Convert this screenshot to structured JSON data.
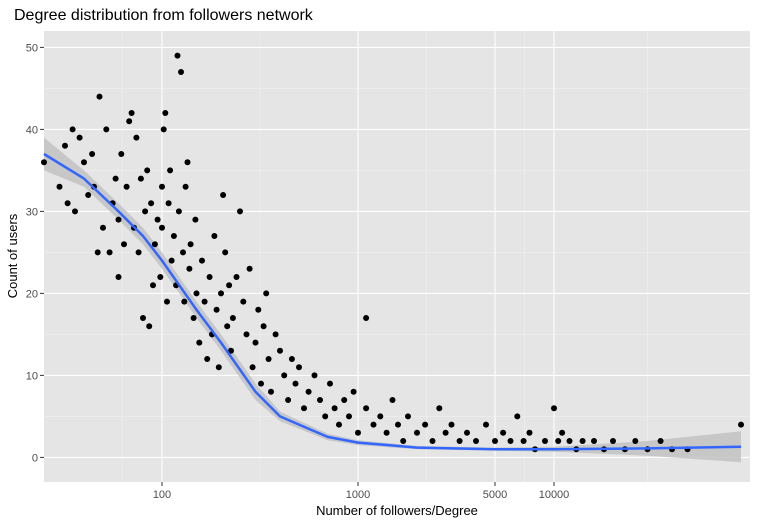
{
  "chart_data": {
    "type": "scatter",
    "title": "Degree distribution from followers network",
    "xlabel": "Number of followers/Degree",
    "ylabel": "Count of users",
    "x_scale": "log10",
    "xlim": [
      25,
      100000
    ],
    "ylim": [
      -3,
      52
    ],
    "x_ticks": [
      {
        "value": 100,
        "label": "100"
      },
      {
        "value": 1000,
        "label": "1000"
      },
      {
        "value": 5000,
        "label": "5000"
      },
      {
        "value": 10000,
        "label": "10000"
      }
    ],
    "y_ticks": [
      {
        "value": 0,
        "label": "0"
      },
      {
        "value": 10,
        "label": "10"
      },
      {
        "value": 20,
        "label": "20"
      },
      {
        "value": 30,
        "label": "30"
      },
      {
        "value": 40,
        "label": "40"
      },
      {
        "value": 50,
        "label": "50"
      }
    ],
    "grid": true,
    "points": [
      [
        25,
        36
      ],
      [
        30,
        33
      ],
      [
        32,
        38
      ],
      [
        33,
        31
      ],
      [
        35,
        40
      ],
      [
        36,
        30
      ],
      [
        38,
        39
      ],
      [
        40,
        36
      ],
      [
        42,
        32
      ],
      [
        44,
        37
      ],
      [
        45,
        33
      ],
      [
        47,
        25
      ],
      [
        48,
        44
      ],
      [
        50,
        28
      ],
      [
        52,
        40
      ],
      [
        54,
        25
      ],
      [
        56,
        31
      ],
      [
        58,
        34
      ],
      [
        60,
        22
      ],
      [
        60,
        29
      ],
      [
        62,
        37
      ],
      [
        64,
        26
      ],
      [
        66,
        33
      ],
      [
        68,
        41
      ],
      [
        70,
        42
      ],
      [
        72,
        28
      ],
      [
        74,
        39
      ],
      [
        76,
        25
      ],
      [
        78,
        34
      ],
      [
        80,
        17
      ],
      [
        82,
        30
      ],
      [
        84,
        35
      ],
      [
        86,
        16
      ],
      [
        88,
        31
      ],
      [
        90,
        21
      ],
      [
        92,
        26
      ],
      [
        95,
        29
      ],
      [
        98,
        22
      ],
      [
        100,
        28
      ],
      [
        100,
        33
      ],
      [
        102,
        40
      ],
      [
        104,
        42
      ],
      [
        106,
        19
      ],
      [
        108,
        31
      ],
      [
        110,
        35
      ],
      [
        112,
        24
      ],
      [
        115,
        27
      ],
      [
        118,
        21
      ],
      [
        120,
        49
      ],
      [
        122,
        30
      ],
      [
        125,
        47
      ],
      [
        128,
        25
      ],
      [
        130,
        19
      ],
      [
        132,
        33
      ],
      [
        135,
        36
      ],
      [
        138,
        23
      ],
      [
        140,
        26
      ],
      [
        145,
        17
      ],
      [
        148,
        29
      ],
      [
        150,
        20
      ],
      [
        155,
        14
      ],
      [
        160,
        24
      ],
      [
        165,
        19
      ],
      [
        170,
        12
      ],
      [
        175,
        22
      ],
      [
        180,
        15
      ],
      [
        185,
        27
      ],
      [
        190,
        18
      ],
      [
        195,
        11
      ],
      [
        200,
        20
      ],
      [
        205,
        32
      ],
      [
        210,
        25
      ],
      [
        215,
        16
      ],
      [
        220,
        21
      ],
      [
        225,
        13
      ],
      [
        230,
        17
      ],
      [
        240,
        22
      ],
      [
        250,
        30
      ],
      [
        260,
        19
      ],
      [
        270,
        15
      ],
      [
        280,
        23
      ],
      [
        290,
        11
      ],
      [
        300,
        14
      ],
      [
        310,
        18
      ],
      [
        320,
        9
      ],
      [
        330,
        16
      ],
      [
        340,
        20
      ],
      [
        350,
        12
      ],
      [
        360,
        8
      ],
      [
        380,
        15
      ],
      [
        400,
        13
      ],
      [
        420,
        10
      ],
      [
        440,
        7
      ],
      [
        460,
        12
      ],
      [
        480,
        9
      ],
      [
        500,
        11
      ],
      [
        530,
        6
      ],
      [
        560,
        8
      ],
      [
        600,
        10
      ],
      [
        640,
        7
      ],
      [
        680,
        5
      ],
      [
        720,
        9
      ],
      [
        760,
        6
      ],
      [
        800,
        4
      ],
      [
        850,
        7
      ],
      [
        900,
        5
      ],
      [
        950,
        8
      ],
      [
        1000,
        3
      ],
      [
        1100,
        17
      ],
      [
        1100,
        6
      ],
      [
        1200,
        4
      ],
      [
        1300,
        5
      ],
      [
        1400,
        3
      ],
      [
        1500,
        7
      ],
      [
        1600,
        4
      ],
      [
        1700,
        2
      ],
      [
        1800,
        5
      ],
      [
        2000,
        3
      ],
      [
        2200,
        4
      ],
      [
        2400,
        2
      ],
      [
        2600,
        6
      ],
      [
        2800,
        3
      ],
      [
        3000,
        4
      ],
      [
        3300,
        2
      ],
      [
        3600,
        3
      ],
      [
        4000,
        2
      ],
      [
        4500,
        4
      ],
      [
        5000,
        2
      ],
      [
        5500,
        3
      ],
      [
        6000,
        2
      ],
      [
        6500,
        5
      ],
      [
        7000,
        2
      ],
      [
        7500,
        3
      ],
      [
        8000,
        1
      ],
      [
        9000,
        2
      ],
      [
        10000,
        6
      ],
      [
        10500,
        2
      ],
      [
        11000,
        3
      ],
      [
        12000,
        2
      ],
      [
        13000,
        1
      ],
      [
        14000,
        2
      ],
      [
        16000,
        2
      ],
      [
        18000,
        1
      ],
      [
        20000,
        2
      ],
      [
        23000,
        1
      ],
      [
        26000,
        2
      ],
      [
        30000,
        1
      ],
      [
        35000,
        2
      ],
      [
        40000,
        1
      ],
      [
        48000,
        1
      ],
      [
        90000,
        4
      ]
    ],
    "trend_line": {
      "x": [
        25,
        40,
        60,
        80,
        100,
        150,
        200,
        300,
        400,
        500,
        700,
        1000,
        2000,
        5000,
        10000,
        30000,
        90000
      ],
      "y": [
        37,
        34,
        30,
        27,
        24,
        18,
        14,
        8,
        5,
        4,
        2.5,
        1.8,
        1.2,
        1.0,
        1.0,
        1.1,
        1.3
      ],
      "ci_lower": [
        35,
        33,
        29,
        26,
        23,
        17,
        13,
        7,
        4.4,
        3.5,
        2.1,
        1.5,
        1.0,
        0.8,
        0.7,
        0.2,
        -0.6
      ],
      "ci_upper": [
        39,
        35,
        31,
        28,
        25,
        19,
        15,
        9,
        5.6,
        4.5,
        2.9,
        2.1,
        1.4,
        1.2,
        1.3,
        2.0,
        3.2
      ]
    },
    "colors": {
      "panel": "#e5e5e5",
      "grid_major": "#ffffff",
      "grid_minor": "#f0f0f0",
      "points": "#000000",
      "trend": "#3366ff",
      "ribbon": "#c2c2c2"
    }
  }
}
